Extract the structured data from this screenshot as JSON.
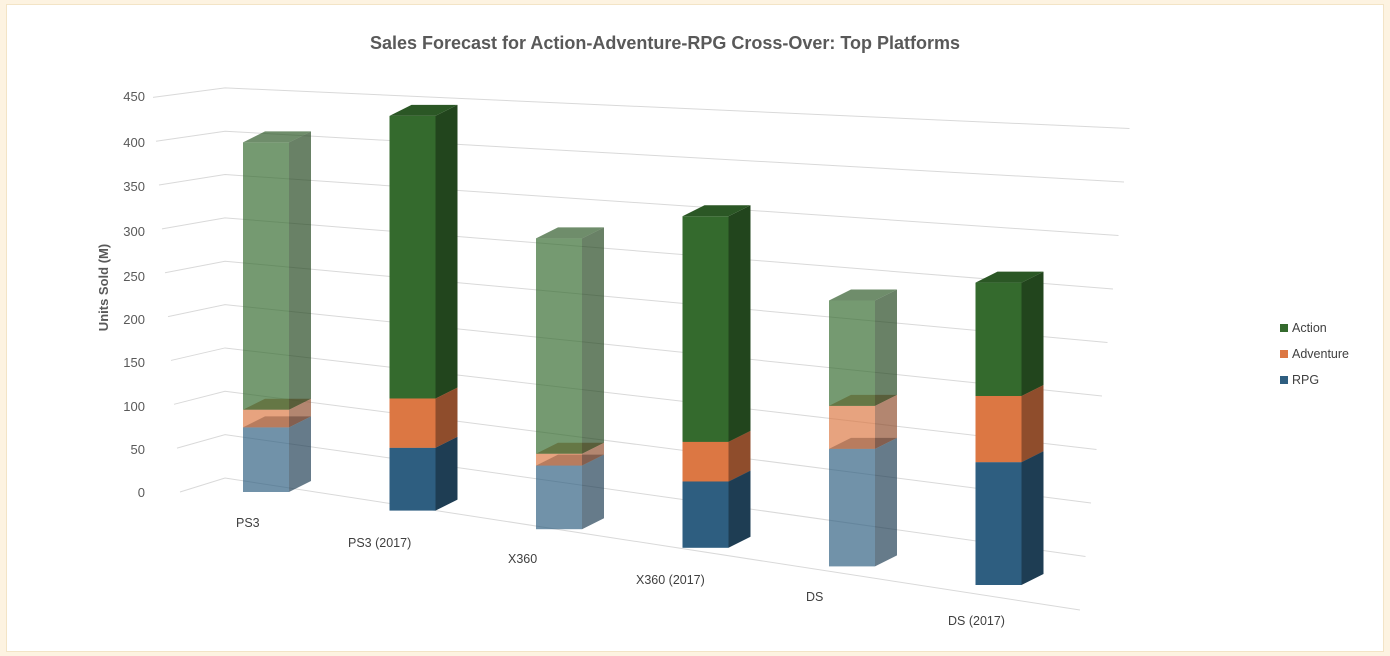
{
  "chart_data": {
    "type": "bar",
    "subtype": "3d-stacked-column",
    "title": "Sales Forecast for Action-Adventure-RPG Cross-Over: Top Platforms",
    "xlabel": "",
    "ylabel": "Units Sold (M)",
    "ylim": [
      0,
      450
    ],
    "yticks": [
      "0",
      "50",
      "100",
      "150",
      "200",
      "250",
      "300",
      "350",
      "400",
      "450"
    ],
    "grid": true,
    "legend_position": "right",
    "categories": [
      "PS3",
      "PS3 (2017)",
      "X360",
      "X360 (2017)",
      "DS",
      "DS (2017)"
    ],
    "translucent_categories": [
      "PS3",
      "X360",
      "DS"
    ],
    "series": [
      {
        "name": "RPG",
        "color": "#2e5e80",
        "values": [
          73,
          70,
          70,
          72,
          126,
          130
        ]
      },
      {
        "name": "Adventure",
        "color": "#dc7743",
        "values": [
          20,
          55,
          13,
          43,
          46,
          70
        ]
      },
      {
        "name": "Action",
        "color": "#346a2d",
        "values": [
          302,
          315,
          237,
          245,
          113,
          120
        ]
      }
    ]
  }
}
